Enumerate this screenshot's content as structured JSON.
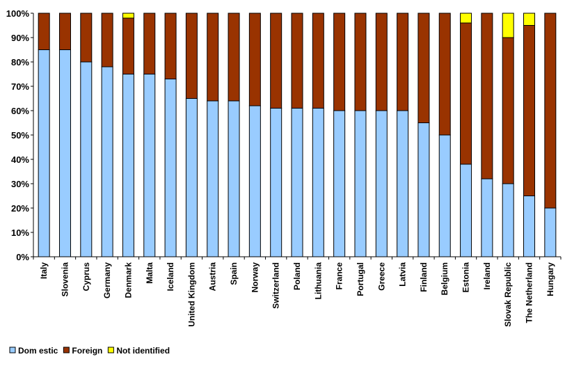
{
  "chart_data": {
    "type": "bar",
    "stacked": true,
    "title": "",
    "xlabel": "",
    "ylabel": "",
    "ylim": [
      0,
      100
    ],
    "yticks": [
      "0%",
      "10%",
      "20%",
      "30%",
      "40%",
      "50%",
      "60%",
      "70%",
      "80%",
      "90%",
      "100%"
    ],
    "grid": false,
    "legend_position": "bottom-left",
    "categories": [
      "Italy",
      "Slovenia",
      "Cyprus",
      "Germany",
      "Denmark",
      "Malta",
      "Iceland",
      "United Kingdom",
      "Austria",
      "Spain",
      "Norway",
      "Switzerland",
      "Poland",
      "Lithuania",
      "France",
      "Portugal",
      "Greece",
      "Latvia",
      "Finland",
      "Belgium",
      "Estonia",
      "Ireland",
      "Slovak Republic",
      "The Netherland",
      "Hungary"
    ],
    "series": [
      {
        "name": "Dom estic",
        "color": "#99ccff",
        "values": [
          85,
          85,
          80,
          78,
          75,
          75,
          73,
          65,
          64,
          64,
          62,
          61,
          61,
          61,
          60,
          60,
          60,
          60,
          55,
          50,
          38,
          32,
          30,
          25,
          20
        ]
      },
      {
        "name": "Foreign",
        "color": "#993300",
        "values": [
          15,
          15,
          20,
          22,
          23,
          25,
          27,
          35,
          36,
          36,
          38,
          39,
          39,
          39,
          40,
          40,
          40,
          40,
          45,
          50,
          58,
          68,
          60,
          70,
          80
        ]
      },
      {
        "name": "Not identified",
        "color": "#ffff00",
        "values": [
          0,
          0,
          0,
          0,
          2,
          0,
          0,
          0,
          0,
          0,
          0,
          0,
          0,
          0,
          0,
          0,
          0,
          0,
          0,
          0,
          4,
          0,
          10,
          5,
          0
        ]
      }
    ]
  }
}
